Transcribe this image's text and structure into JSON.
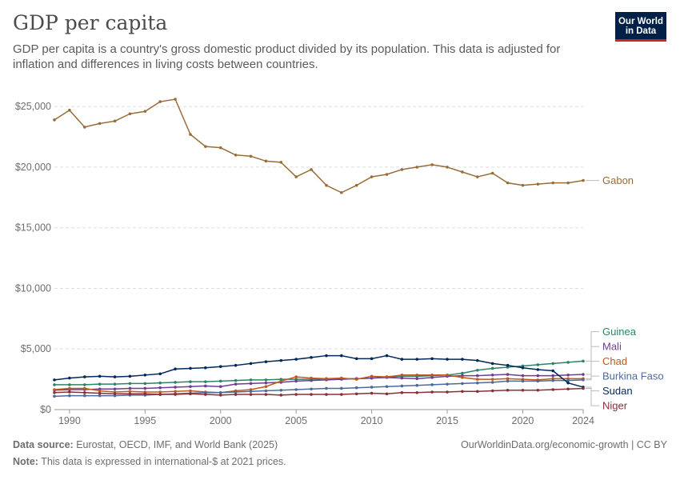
{
  "header": {
    "title": "GDP per capita",
    "subtitle": "GDP per capita is a country's gross domestic product divided by its population. This data is adjusted for inflation and differences in living costs between countries.",
    "logo_line1": "Our World",
    "logo_line2": "in Data"
  },
  "footer": {
    "source_label": "Data source:",
    "source_text": "Eurostat, OECD, IMF, and World Bank (2025)",
    "note_label": "Note:",
    "note_text": "This data is expressed in international-$ at 2021 prices.",
    "credit": "OurWorldinData.org/economic-growth | CC BY"
  },
  "chart_data": {
    "type": "line",
    "title": "GDP per capita",
    "xlabel": "",
    "ylabel": "",
    "xlim": [
      1989,
      2024
    ],
    "ylim": [
      0,
      26000
    ],
    "x_ticks": [
      1990,
      1995,
      2000,
      2005,
      2010,
      2015,
      2020,
      2024
    ],
    "y_ticks": [
      0,
      5000,
      10000,
      15000,
      20000,
      25000
    ],
    "y_tick_labels": [
      "$0",
      "$5,000",
      "$10,000",
      "$15,000",
      "$20,000",
      "$25,000"
    ],
    "grid": "horizontal dashed",
    "legend": "right, labels at line ends",
    "x": [
      1989,
      1990,
      1991,
      1992,
      1993,
      1994,
      1995,
      1996,
      1997,
      1998,
      1999,
      2000,
      2001,
      2002,
      2003,
      2004,
      2005,
      2006,
      2007,
      2008,
      2009,
      2010,
      2011,
      2012,
      2013,
      2014,
      2015,
      2016,
      2017,
      2018,
      2019,
      2020,
      2021,
      2022,
      2023,
      2024
    ],
    "series": [
      {
        "name": "Gabon",
        "color": "#996d39",
        "values": [
          23900,
          24700,
          23300,
          23600,
          23800,
          24400,
          24600,
          25400,
          25600,
          22700,
          21700,
          21600,
          21000,
          20900,
          20500,
          20400,
          19200,
          19800,
          18500,
          17900,
          18500,
          19200,
          19400,
          19800,
          20000,
          20200,
          20000,
          19600,
          19200,
          19500,
          18700,
          18500,
          18600,
          18700,
          18700,
          18900
        ]
      },
      {
        "name": "Guinea",
        "color": "#2c8465",
        "values": [
          2050,
          2050,
          2050,
          2100,
          2100,
          2150,
          2150,
          2200,
          2250,
          2300,
          2300,
          2350,
          2400,
          2450,
          2450,
          2500,
          2500,
          2500,
          2550,
          2550,
          2550,
          2600,
          2700,
          2750,
          2750,
          2800,
          2850,
          3000,
          3250,
          3400,
          3500,
          3600,
          3700,
          3800,
          3900,
          4000
        ]
      },
      {
        "name": "Mali",
        "color": "#6d3e91",
        "values": [
          1600,
          1650,
          1650,
          1700,
          1700,
          1750,
          1750,
          1800,
          1850,
          1900,
          1950,
          1900,
          2100,
          2150,
          2200,
          2250,
          2350,
          2400,
          2450,
          2500,
          2550,
          2600,
          2650,
          2600,
          2550,
          2650,
          2750,
          2800,
          2800,
          2850,
          2900,
          2800,
          2800,
          2800,
          2850,
          2900
        ]
      },
      {
        "name": "Chad",
        "color": "#c05917",
        "values": [
          1650,
          1750,
          1750,
          1550,
          1450,
          1500,
          1450,
          1450,
          1500,
          1550,
          1450,
          1400,
          1550,
          1650,
          1900,
          2350,
          2700,
          2600,
          2550,
          2600,
          2500,
          2750,
          2700,
          2850,
          2850,
          2850,
          2850,
          2650,
          2500,
          2500,
          2550,
          2500,
          2450,
          2550,
          2550,
          2550
        ]
      },
      {
        "name": "Burkina Faso",
        "color": "#4c6a9c",
        "values": [
          1100,
          1150,
          1150,
          1150,
          1150,
          1200,
          1200,
          1250,
          1300,
          1350,
          1400,
          1400,
          1450,
          1500,
          1550,
          1600,
          1650,
          1700,
          1750,
          1750,
          1800,
          1850,
          1900,
          1950,
          2000,
          2050,
          2100,
          2150,
          2200,
          2250,
          2350,
          2350,
          2350,
          2400,
          2400,
          2450
        ]
      },
      {
        "name": "Sudan",
        "color": "#00295b",
        "values": [
          2450,
          2600,
          2700,
          2750,
          2700,
          2750,
          2850,
          2950,
          3350,
          3400,
          3450,
          3550,
          3650,
          3800,
          3950,
          4050,
          4150,
          4300,
          4450,
          4450,
          4200,
          4200,
          4450,
          4150,
          4150,
          4200,
          4150,
          4150,
          4050,
          3800,
          3650,
          3450,
          3300,
          3200,
          2200,
          1850
        ]
      },
      {
        "name": "Niger",
        "color": "#883039",
        "values": [
          1400,
          1450,
          1400,
          1350,
          1300,
          1300,
          1300,
          1250,
          1250,
          1300,
          1250,
          1200,
          1250,
          1250,
          1250,
          1200,
          1250,
          1250,
          1250,
          1250,
          1300,
          1350,
          1300,
          1400,
          1400,
          1450,
          1450,
          1500,
          1500,
          1550,
          1600,
          1600,
          1600,
          1650,
          1700,
          1750
        ]
      }
    ]
  }
}
